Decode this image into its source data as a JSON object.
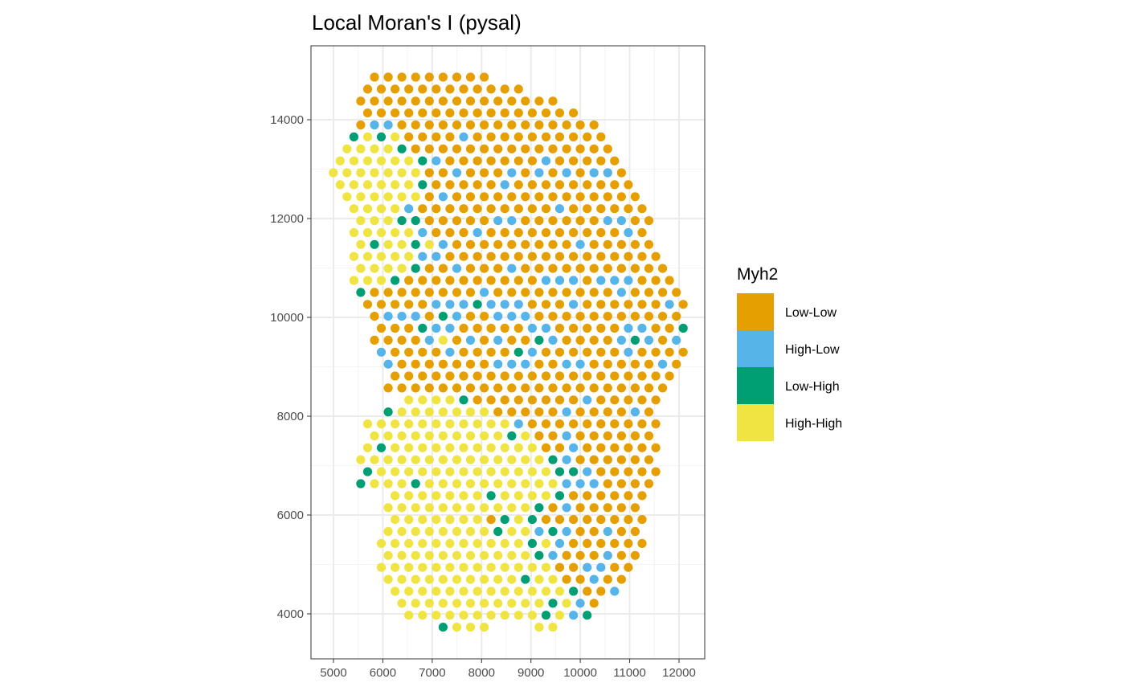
{
  "chart_data": {
    "type": "scatter",
    "title": "Local Moran's I (pysal)",
    "xlabel": "",
    "ylabel": "",
    "xlim": [
      4544,
      12521
    ],
    "ylim": [
      3089,
      15496
    ],
    "x_ticks": [
      5000,
      6000,
      7000,
      8000,
      9000,
      10000,
      11000,
      12000
    ],
    "y_ticks": [
      4000,
      6000,
      8000,
      10000,
      12000,
      14000
    ],
    "grid": true,
    "legend": {
      "title": "Myh2",
      "placement": "right",
      "entries": [
        {
          "code": "O",
          "label": "Low-Low",
          "color": "#E69F00"
        },
        {
          "code": "B",
          "label": "High-Low",
          "color": "#56B4E9"
        },
        {
          "code": "G",
          "label": "Low-High",
          "color": "#009E73"
        },
        {
          "code": "Y",
          "label": "High-High",
          "color": "#F0E442"
        }
      ]
    },
    "x_step": 278,
    "rows": [
      {
        "y": 14862,
        "x_start": 5830,
        "cats": "OOOOOOOOO"
      },
      {
        "y": 14620,
        "x_start": 5691,
        "cats": "OOOOOOOOOOOO"
      },
      {
        "y": 14378,
        "x_start": 5552,
        "cats": "OOOOOOOOOOOOOOO"
      },
      {
        "y": 14136,
        "x_start": 5691,
        "cats": "OOOOOOOOOOOOOOOO"
      },
      {
        "y": 13894,
        "x_start": 5552,
        "cats": "OBBOOOOOOOOOOOOOOO"
      },
      {
        "y": 13652,
        "x_start": 5413,
        "cats": "GYGYOOOOBOOOOOOOOOO"
      },
      {
        "y": 13410,
        "x_start": 5274,
        "cats": "YYYYGOOOOOOOOOOOOOOO"
      },
      {
        "y": 13168,
        "x_start": 5135,
        "cats": "YYYYYYGBOOOOOOOBOOOOO"
      },
      {
        "y": 12926,
        "x_start": 4996,
        "cats": "YYYYYYYOOBOOOBOBOBOBBO"
      },
      {
        "y": 12684,
        "x_start": 5135,
        "cats": "YYYYYYGOOOOOBOOOOOOOOO"
      },
      {
        "y": 12442,
        "x_start": 5274,
        "cats": "YYYYYYOBOOOOOOOOOOOOOO"
      },
      {
        "y": 12200,
        "x_start": 5413,
        "cats": "YYYYBOOOOOOOOOOBOOOOOO"
      },
      {
        "y": 11958,
        "x_start": 5552,
        "cats": "YYYGGOOOOOBBOOOOOOBBOO"
      },
      {
        "y": 11716,
        "x_start": 5413,
        "cats": "YYYYYBOOOBOOOOOOOOOOBO"
      },
      {
        "y": 11474,
        "x_start": 5552,
        "cats": "YGYYGYBOOOOOOOOOBOOOOO"
      },
      {
        "y": 11232,
        "x_start": 5413,
        "cats": "YYYYYBBOOOOOOOOOOOOOOOO"
      },
      {
        "y": 10990,
        "x_start": 5552,
        "cats": "YYYYGOOBOOOBOOOOOOOOOOO"
      },
      {
        "y": 10748,
        "x_start": 5413,
        "cats": "YYYGOOOOOOOOOOBBBOBBBOOO"
      },
      {
        "y": 10506,
        "x_start": 5552,
        "cats": "GOOOOOOOOBOOOOOOOOOBOOOO"
      },
      {
        "y": 10264,
        "x_start": 5691,
        "cats": "OOOOOBBBGBBBOOOBOOOOOOBO"
      },
      {
        "y": 10022,
        "x_start": 5830,
        "cats": "OBBBOGBOOBBBOOOOOOOOOOO"
      },
      {
        "y": 9780,
        "x_start": 5969,
        "cats": "OOOGBBOOOOOBBOOOOOBBOOG"
      },
      {
        "y": 9538,
        "x_start": 5830,
        "cats": "OOOOBYOBOBOOGBOOOOBGBOB"
      },
      {
        "y": 9296,
        "x_start": 5969,
        "cats": "BOOOOBOOOOGBOOOOOOBOOOO"
      },
      {
        "y": 9054,
        "x_start": 6108,
        "cats": "BOOOOOOOBBBOOBBOOOOOBO"
      },
      {
        "y": 8812,
        "x_start": 6247,
        "cats": "OOOOOOOOOOOOOOOOOOOOO"
      },
      {
        "y": 8570,
        "x_start": 6108,
        "cats": "OOOOOOOOOOOOOOOOOOOOO"
      },
      {
        "y": 8328,
        "x_start": 6525,
        "cats": "YYYYGOOOOOOOOBOOOOO"
      },
      {
        "y": 8086,
        "x_start": 6108,
        "cats": "GYYYYYYYOOOOOBOOOOBO"
      },
      {
        "y": 7844,
        "x_start": 5691,
        "cats": "YYYYYYYYYYYBOOOOOOOOOO"
      },
      {
        "y": 7602,
        "x_start": 5830,
        "cats": "YYYYYYYYYYGYOOBOOOOOO"
      },
      {
        "y": 7360,
        "x_start": 5691,
        "cats": "YGYYYYYYYYYYYOOBOOOOOO"
      },
      {
        "y": 7118,
        "x_start": 5552,
        "cats": "YYYYYYYYYYYYYYGBOOOOOO"
      },
      {
        "y": 6876,
        "x_start": 5691,
        "cats": "GYYYYYYYYYYYYYGGBOOOOO"
      },
      {
        "y": 6634,
        "x_start": 5552,
        "cats": "GYYYGYYYYYYYYYYBBBOOOO"
      },
      {
        "y": 6392,
        "x_start": 6247,
        "cats": "YYYYYYYGYYYYGOOOOOO"
      },
      {
        "y": 6150,
        "x_start": 6108,
        "cats": "YYYYYYYYYYYGOBOOOOO"
      },
      {
        "y": 5908,
        "x_start": 6247,
        "cats": "YYYYYYYOGYGOOOOOOOO"
      },
      {
        "y": 5666,
        "x_start": 6108,
        "cats": "YYYYYYYYGYYBGBOOBOO"
      },
      {
        "y": 5424,
        "x_start": 5969,
        "cats": "YYYYYYYYYYYGYBOOOOOO"
      },
      {
        "y": 5182,
        "x_start": 6108,
        "cats": "YYYYYYYYYYYGBOOOBOO"
      },
      {
        "y": 4940,
        "x_start": 5969,
        "cats": "YYYYYYYYYYYYYOOBBOO"
      },
      {
        "y": 4698,
        "x_start": 6108,
        "cats": "YYYYYYYYYYGYYOOBOO"
      },
      {
        "y": 4456,
        "x_start": 6247,
        "cats": "YYYYYYYYYYYYYGOOB"
      },
      {
        "y": 4214,
        "x_start": 6386,
        "cats": "YYYYYYYYYYYGYBO"
      },
      {
        "y": 3972,
        "x_start": 6525,
        "cats": "YYYYYYYYYYGYBG"
      },
      {
        "y": 3730,
        "x_start": 7220,
        "cats": "GYYY...YY"
      }
    ]
  }
}
